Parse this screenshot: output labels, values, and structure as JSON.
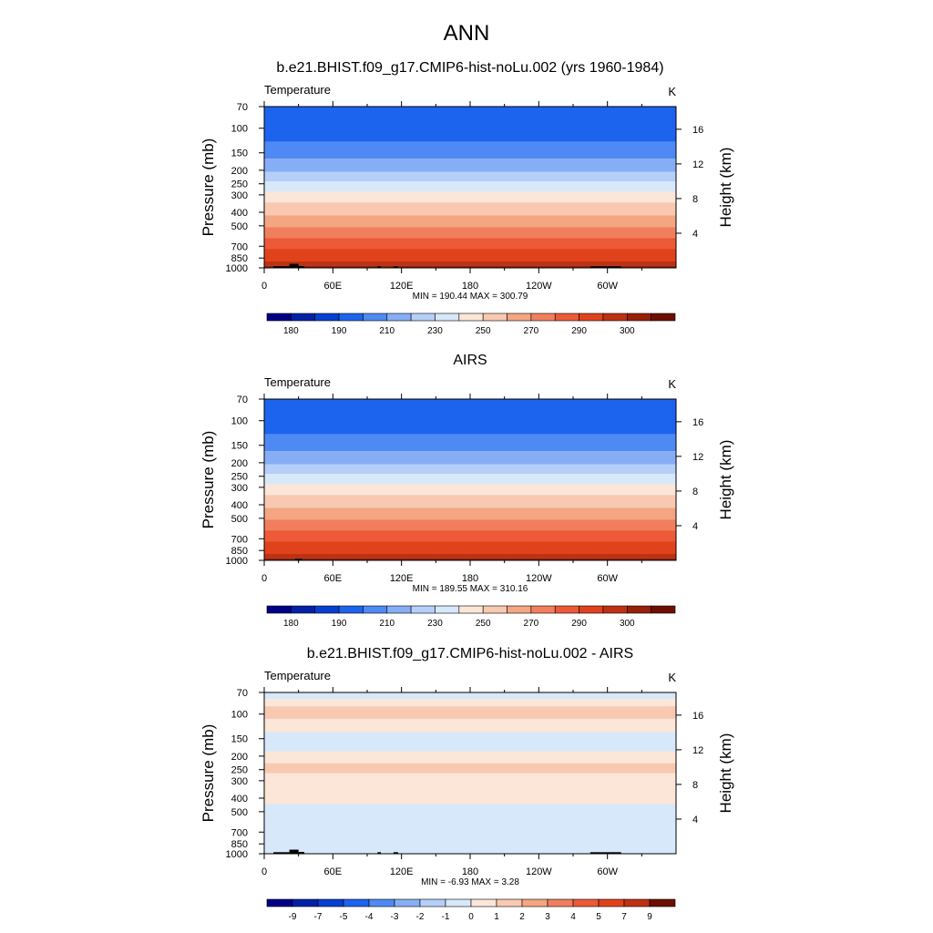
{
  "figure_title": "ANN",
  "colors": {
    "abs_scale": [
      "#000086",
      "#0221a6",
      "#0540d1",
      "#1c64ee",
      "#4f89f3",
      "#86aef4",
      "#b5cff8",
      "#d7e8fb",
      "#fbe6d8",
      "#f8c9b0",
      "#f4a582",
      "#f17f5d",
      "#ec5a37",
      "#e0431b",
      "#c03012",
      "#962008",
      "#6d0f00"
    ],
    "diff_scale": [
      "#000086",
      "#0221a6",
      "#0540d1",
      "#1c64ee",
      "#4f89f3",
      "#86aef4",
      "#b5cff8",
      "#d7e8fb",
      "#fbe6d8",
      "#f8c9b0",
      "#f4a582",
      "#f17f5d",
      "#ec5a37",
      "#e0431b",
      "#c03012",
      "#6d0f00"
    ],
    "land_mask": "#000000"
  },
  "chart_data": [
    {
      "type": "heatmap",
      "title": "b.e21.BHIST.f09_g17.CMIP6-hist-noLu.002 (yrs 1960-1984)",
      "left_label": "Temperature",
      "right_label": "K",
      "ylabel": "Pressure (mb)",
      "ylabel_right": "Height (km)",
      "x_ticks": [
        "0",
        "60E",
        "120E",
        "180",
        "120W",
        "60W"
      ],
      "y_ticks": [
        "70",
        "100",
        "150",
        "200",
        "250",
        "300",
        "400",
        "500",
        "700",
        "850",
        "1000"
      ],
      "y2_ticks": [
        "16",
        "12",
        "8",
        "4"
      ],
      "stats": "MIN = 190.44  MAX = 300.79",
      "colorbar_labels": [
        "180",
        "190",
        "210",
        "230",
        "250",
        "270",
        "290",
        "300"
      ],
      "bands": [
        {
          "pmin": 70,
          "pmax": 125,
          "c": 3
        },
        {
          "pmin": 125,
          "pmax": 165,
          "c": 4
        },
        {
          "pmin": 165,
          "pmax": 205,
          "c": 5
        },
        {
          "pmin": 205,
          "pmax": 240,
          "c": 6
        },
        {
          "pmin": 240,
          "pmax": 285,
          "c": 7
        },
        {
          "pmin": 285,
          "pmax": 340,
          "c": 8
        },
        {
          "pmin": 340,
          "pmax": 420,
          "c": 9
        },
        {
          "pmin": 420,
          "pmax": 510,
          "c": 10
        },
        {
          "pmin": 510,
          "pmax": 610,
          "c": 11
        },
        {
          "pmin": 610,
          "pmax": 730,
          "c": 12
        },
        {
          "pmin": 730,
          "pmax": 900,
          "c": 13
        },
        {
          "pmin": 900,
          "pmax": 960,
          "c": 14
        },
        {
          "pmin": 960,
          "pmax": 1000,
          "c": 15
        }
      ],
      "land": [
        {
          "lon0": 8,
          "lon1": 22,
          "p": 975
        },
        {
          "lon0": 22,
          "lon1": 30,
          "p": 935
        },
        {
          "lon0": 30,
          "lon1": 35,
          "p": 970
        },
        {
          "lon0": 99,
          "lon1": 102,
          "p": 975
        },
        {
          "lon0": 113,
          "lon1": 117,
          "p": 975
        },
        {
          "lon0": 285,
          "lon1": 312,
          "p": 975
        }
      ]
    },
    {
      "type": "heatmap",
      "title": "AIRS",
      "left_label": "Temperature",
      "right_label": "K",
      "ylabel": "Pressure (mb)",
      "ylabel_right": "Height (km)",
      "x_ticks": [
        "0",
        "60E",
        "120E",
        "180",
        "120W",
        "60W"
      ],
      "y_ticks": [
        "70",
        "100",
        "150",
        "200",
        "250",
        "300",
        "400",
        "500",
        "700",
        "850",
        "1000"
      ],
      "y2_ticks": [
        "16",
        "12",
        "8",
        "4"
      ],
      "stats": "MIN = 189.55  MAX = 310.16",
      "colorbar_labels": [
        "180",
        "190",
        "210",
        "230",
        "250",
        "270",
        "290",
        "300"
      ],
      "bands": [
        {
          "pmin": 70,
          "pmax": 125,
          "c": 3
        },
        {
          "pmin": 125,
          "pmax": 165,
          "c": 4
        },
        {
          "pmin": 165,
          "pmax": 205,
          "c": 5
        },
        {
          "pmin": 205,
          "pmax": 240,
          "c": 6
        },
        {
          "pmin": 240,
          "pmax": 285,
          "c": 7
        },
        {
          "pmin": 285,
          "pmax": 340,
          "c": 8
        },
        {
          "pmin": 340,
          "pmax": 420,
          "c": 9
        },
        {
          "pmin": 420,
          "pmax": 510,
          "c": 10
        },
        {
          "pmin": 510,
          "pmax": 610,
          "c": 11
        },
        {
          "pmin": 610,
          "pmax": 730,
          "c": 12
        },
        {
          "pmin": 730,
          "pmax": 900,
          "c": 13
        },
        {
          "pmin": 900,
          "pmax": 960,
          "c": 14
        },
        {
          "pmin": 960,
          "pmax": 1000,
          "c": 15
        }
      ],
      "land": [
        {
          "lon0": 27,
          "lon1": 33,
          "p": 975
        }
      ]
    },
    {
      "type": "heatmap",
      "title": "b.e21.BHIST.f09_g17.CMIP6-hist-noLu.002 - AIRS",
      "left_label": "Temperature",
      "right_label": "K",
      "ylabel": "Pressure (mb)",
      "ylabel_right": "Height (km)",
      "x_ticks": [
        "0",
        "60E",
        "120E",
        "180",
        "120W",
        "60W"
      ],
      "y_ticks": [
        "70",
        "100",
        "150",
        "200",
        "250",
        "300",
        "400",
        "500",
        "700",
        "850",
        "1000"
      ],
      "y2_ticks": [
        "16",
        "12",
        "8",
        "4"
      ],
      "stats": "MIN = -6.93  MAX =   3.28",
      "colorbar_labels": [
        "-9",
        "-7",
        "-5",
        "-4",
        "-3",
        "-2",
        "-1",
        "0",
        "1",
        "2",
        "3",
        "4",
        "5",
        "7",
        "9"
      ],
      "bands": [
        {
          "pmin": 70,
          "pmax": 78,
          "c": 7
        },
        {
          "pmin": 78,
          "pmax": 1000,
          "c": 8
        },
        {
          "pmin": 135,
          "pmax": 185,
          "c": 7
        },
        {
          "pmin": 440,
          "pmax": 780,
          "c": 7
        },
        {
          "pmin": 780,
          "pmax": 1000,
          "c": 7
        },
        {
          "pmin": 88,
          "pmax": 108,
          "c": 9
        },
        {
          "pmin": 225,
          "pmax": 265,
          "c": 9
        }
      ],
      "land": [
        {
          "lon0": 8,
          "lon1": 22,
          "p": 975
        },
        {
          "lon0": 22,
          "lon1": 30,
          "p": 935
        },
        {
          "lon0": 30,
          "lon1": 35,
          "p": 970
        },
        {
          "lon0": 99,
          "lon1": 102,
          "p": 975
        },
        {
          "lon0": 113,
          "lon1": 117,
          "p": 975
        },
        {
          "lon0": 285,
          "lon1": 312,
          "p": 975
        }
      ]
    }
  ]
}
